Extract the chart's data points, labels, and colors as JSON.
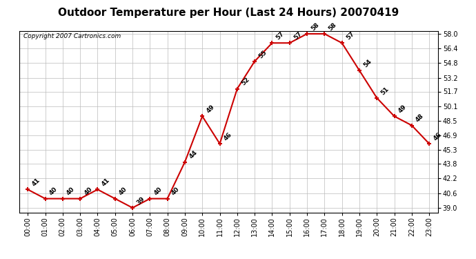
{
  "title": "Outdoor Temperature per Hour (Last 24 Hours) 20070419",
  "copyright_text": "Copyright 2007 Cartronics.com",
  "hours": [
    "00:00",
    "01:00",
    "02:00",
    "03:00",
    "04:00",
    "05:00",
    "06:00",
    "07:00",
    "08:00",
    "09:00",
    "10:00",
    "11:00",
    "12:00",
    "13:00",
    "14:00",
    "15:00",
    "16:00",
    "17:00",
    "18:00",
    "19:00",
    "20:00",
    "21:00",
    "22:00",
    "23:00"
  ],
  "temperatures": [
    41,
    40,
    40,
    40,
    41,
    40,
    39,
    40,
    40,
    44,
    49,
    46,
    52,
    55,
    57,
    57,
    58,
    58,
    57,
    54,
    51,
    49,
    48,
    46
  ],
  "line_color": "#cc0000",
  "marker_color": "#cc0000",
  "marker_style": "+",
  "marker_size": 5,
  "line_width": 1.5,
  "ylim_min": 39.0,
  "ylim_max": 58.0,
  "yticks": [
    39.0,
    40.6,
    42.2,
    43.8,
    45.3,
    46.9,
    48.5,
    50.1,
    51.7,
    53.2,
    54.8,
    56.4,
    58.0
  ],
  "background_color": "#ffffff",
  "plot_bg_color": "#ffffff",
  "grid_color": "#bbbbbb",
  "title_fontsize": 11,
  "label_fontsize": 7,
  "annotation_fontsize": 6.5,
  "copyright_fontsize": 6.5
}
